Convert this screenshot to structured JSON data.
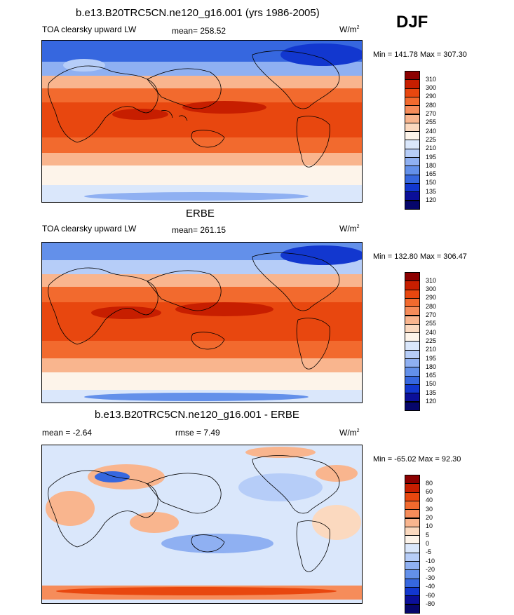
{
  "season": "DJF",
  "panels": [
    {
      "header": "b.e13.B20TRC5CN.ne120_g16.001 (yrs 1986-2005)",
      "left_label": "TOA clearsky upward LW",
      "mid_label": "mean= 258.52",
      "units": "W/m",
      "units_sup": "2",
      "minmax": "Min = 141.78 Max = 307.30"
    },
    {
      "header": "ERBE",
      "left_label": "TOA clearsky upward LW",
      "mid_label": "mean= 261.15",
      "units": "W/m",
      "units_sup": "2",
      "minmax": "Min = 132.80 Max = 306.47"
    },
    {
      "header": "b.e13.B20TRC5CN.ne120_g16.001 - ERBE",
      "left_label": "mean =  -2.64",
      "mid_label": "rmse =   7.49",
      "units": "W/m",
      "units_sup": "2",
      "minmax": "Min = -65.02 Max =  92.30"
    }
  ],
  "chart_data": [
    {
      "type": "heatmap",
      "title": "b.e13.B20TRC5CN.ne120_g16.001 (yrs 1986-2005)",
      "variable": "TOA clearsky upward LW",
      "units": "W/m2",
      "mean": 258.52,
      "min": 141.78,
      "max": 307.3,
      "colorbar_levels": [
        "310",
        "300",
        "290",
        "280",
        "270",
        "255",
        "240",
        "225",
        "210",
        "195",
        "180",
        "165",
        "150",
        "135",
        "120"
      ],
      "colors": [
        "#8c0000",
        "#c71e00",
        "#e8470f",
        "#f26a2e",
        "#f68c5a",
        "#f9b58e",
        "#fbd9bf",
        "#fdf4ea",
        "#dae7fb",
        "#b6cdf8",
        "#8fb0f2",
        "#6390ea",
        "#3667df",
        "#1237cf",
        "#0b0f99",
        "#06066b"
      ]
    },
    {
      "type": "heatmap",
      "title": "ERBE",
      "variable": "TOA clearsky upward LW",
      "units": "W/m2",
      "mean": 261.15,
      "min": 132.8,
      "max": 306.47,
      "colorbar_levels": [
        "310",
        "300",
        "290",
        "280",
        "270",
        "255",
        "240",
        "225",
        "210",
        "195",
        "180",
        "165",
        "150",
        "135",
        "120"
      ],
      "colors": [
        "#8c0000",
        "#c71e00",
        "#e8470f",
        "#f26a2e",
        "#f68c5a",
        "#f9b58e",
        "#fbd9bf",
        "#fdf4ea",
        "#dae7fb",
        "#b6cdf8",
        "#8fb0f2",
        "#6390ea",
        "#3667df",
        "#1237cf",
        "#0b0f99",
        "#06066b"
      ]
    },
    {
      "type": "heatmap",
      "title": "b.e13.B20TRC5CN.ne120_g16.001 - ERBE",
      "units": "W/m2",
      "mean": -2.64,
      "rmse": 7.49,
      "min": -65.02,
      "max": 92.3,
      "colorbar_levels": [
        "80",
        "60",
        "40",
        "30",
        "20",
        "10",
        "5",
        "0",
        "-5",
        "-10",
        "-20",
        "-30",
        "-40",
        "-60",
        "-80"
      ],
      "colors": [
        "#8c0000",
        "#c71e00",
        "#e8470f",
        "#f26a2e",
        "#f68c5a",
        "#f9b58e",
        "#fbd9bf",
        "#fdf4ea",
        "#dae7fb",
        "#b6cdf8",
        "#8fb0f2",
        "#6390ea",
        "#3667df",
        "#1237cf",
        "#0b0f99",
        "#06066b"
      ]
    }
  ]
}
